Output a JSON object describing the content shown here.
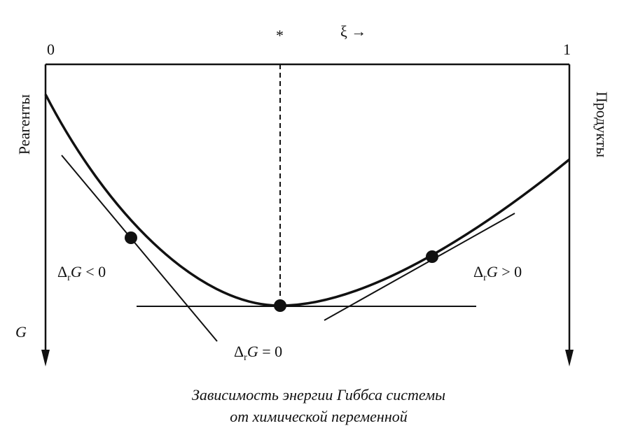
{
  "axis": {
    "left_end": "0",
    "right_end": "1",
    "equilibrium_mark": "*",
    "coordinate": "ξ →",
    "energy": "G"
  },
  "sides": {
    "left": "Реагенты",
    "right": "Продукты"
  },
  "labels": [
    {
      "delta": "Δ",
      "sub": "r",
      "symbol": "G",
      "relation": " < 0"
    },
    {
      "delta": "Δ",
      "sub": "r",
      "symbol": "G",
      "relation": " = 0"
    },
    {
      "delta": "Δ",
      "sub": "r",
      "symbol": "G",
      "relation": " > 0"
    }
  ],
  "caption": [
    "Зависимость энергии Гиббса системы",
    "от химической переменной"
  ]
}
